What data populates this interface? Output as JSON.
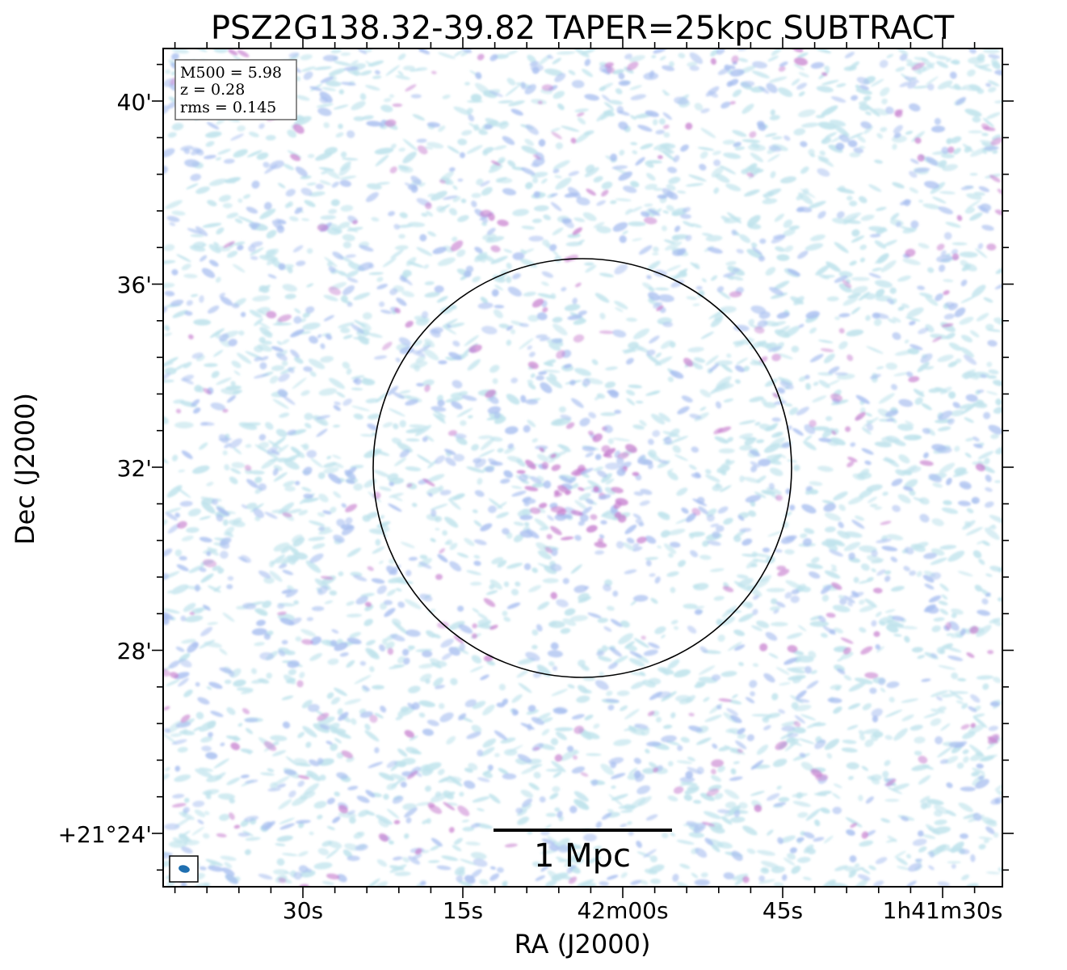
{
  "figure": {
    "title": "PSZ2G138.32-39.82 TAPER=25kpc SUBTRACT",
    "xlabel": "RA (J2000)",
    "ylabel": "Dec (J2000)",
    "ra_ticks": [
      "30s",
      "15s",
      "42m00s",
      "45s",
      "1h41m30s"
    ],
    "dec_ticks": [
      "40'",
      "36'",
      "32'",
      "28'",
      "+21°24'"
    ],
    "info": {
      "m500": "M500 = 5.98",
      "z": "z = 0.28",
      "rms": "rms = 0.145"
    },
    "scalebar_label": "1 Mpc",
    "colors": {
      "noise_light": "#bfe3ec",
      "noise_mid": "#a9bff0",
      "noise_strong": "#c77fcf",
      "beam": "#1f6fb0"
    }
  }
}
